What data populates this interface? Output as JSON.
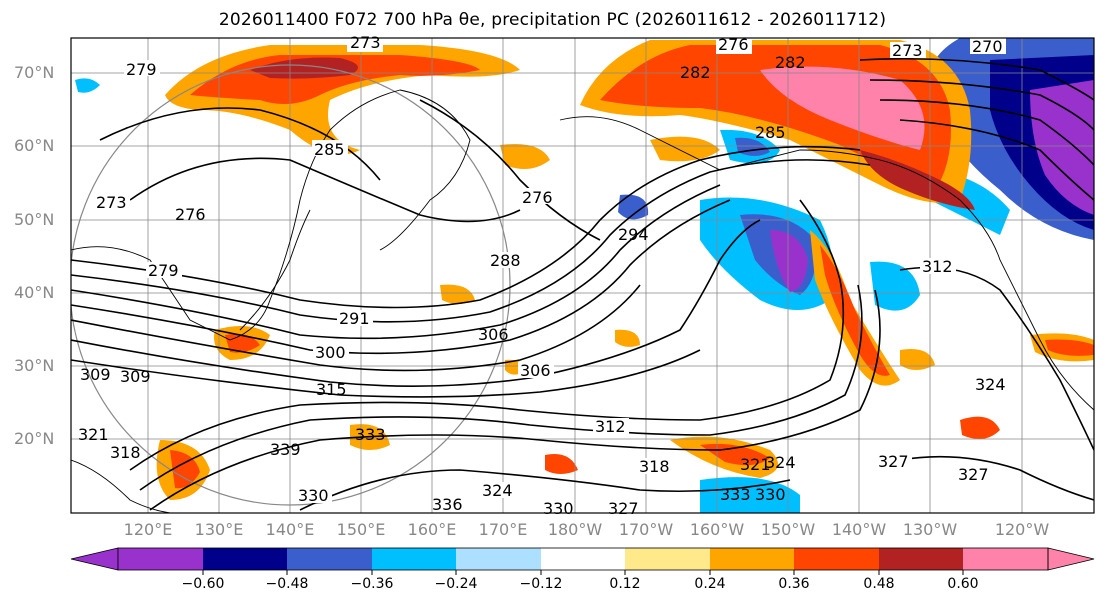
{
  "title": "2026011400 F072 700 hPa θe, precipitation PC (2026011612 - 2026011712)",
  "colors": {
    "purple": "#9932CC",
    "navy": "#00008B",
    "royal": "#3A5FCD",
    "sky": "#00BFFF",
    "lightblue": "#ADDFFF",
    "yellow": "#FFE98A",
    "orange": "#FFA500",
    "orangered": "#FF4500",
    "firebrick": "#B22222",
    "pink": "#FF82AB"
  },
  "lat_labels": [
    "70°N",
    "60°N",
    "50°N",
    "40°N",
    "30°N",
    "20°N"
  ],
  "lon_labels": [
    "120°E",
    "130°E",
    "140°E",
    "150°E",
    "160°E",
    "170°E",
    "180°W",
    "170°W",
    "160°W",
    "150°W",
    "140°W",
    "130°W",
    "120°W"
  ],
  "colorbar": {
    "ticks": [
      "−0.60",
      "−0.48",
      "−0.36",
      "−0.24",
      "−0.12",
      "0.12",
      "0.24",
      "0.36",
      "0.48",
      "0.60"
    ]
  },
  "contour_labels": [
    "273",
    "276",
    "273",
    "270",
    "279",
    "282",
    "282",
    "285",
    "285",
    "276",
    "273",
    "276",
    "279",
    "294",
    "288",
    "312",
    "291",
    "306",
    "300",
    "306",
    "309",
    "312",
    "315",
    "333",
    "321",
    "318",
    "339",
    "324",
    "327",
    "327",
    "327",
    "330",
    "336",
    "330",
    "318",
    "324",
    "321",
    "324",
    "330",
    "333",
    "309"
  ]
}
